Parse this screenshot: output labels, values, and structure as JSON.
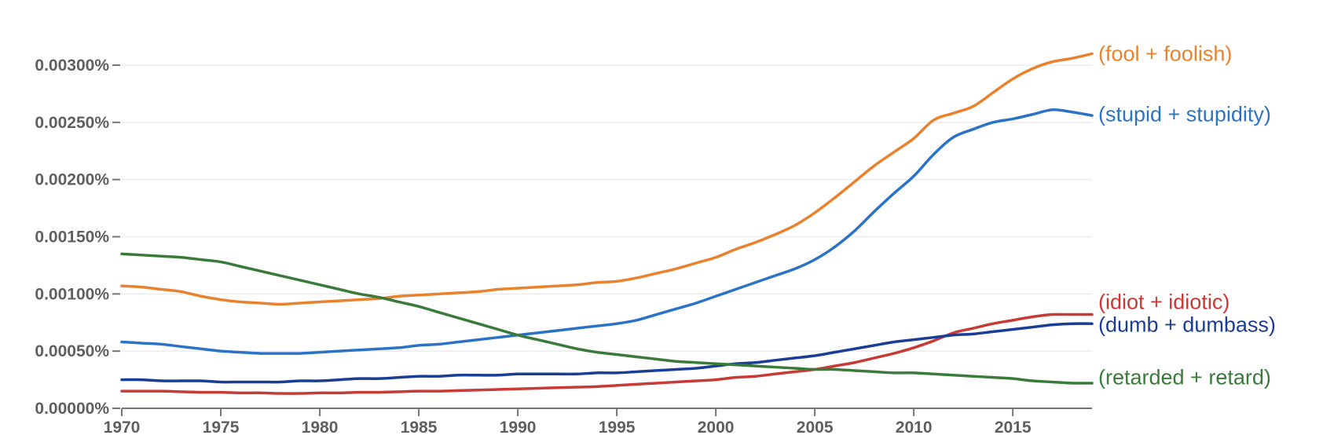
{
  "chart_data": {
    "type": "line",
    "title": "",
    "xlabel": "",
    "ylabel": "",
    "xlim": [
      1970,
      2019
    ],
    "ylim": [
      0,
      0.0033
    ],
    "grid": true,
    "legend": "labels at right end of each line",
    "y_ticks": [
      {
        "value": 0.0,
        "label": "0.00000%"
      },
      {
        "value": 0.0005,
        "label": "0.00050%"
      },
      {
        "value": 0.001,
        "label": "0.00100%"
      },
      {
        "value": 0.0015,
        "label": "0.00150%"
      },
      {
        "value": 0.002,
        "label": "0.00200%"
      },
      {
        "value": 0.0025,
        "label": "0.00250%"
      },
      {
        "value": 0.003,
        "label": "0.00300%"
      }
    ],
    "x_ticks": [
      {
        "value": 1970,
        "label": "1970"
      },
      {
        "value": 1975,
        "label": "1975"
      },
      {
        "value": 1980,
        "label": "1980"
      },
      {
        "value": 1985,
        "label": "1985"
      },
      {
        "value": 1990,
        "label": "1990"
      },
      {
        "value": 1995,
        "label": "1995"
      },
      {
        "value": 2000,
        "label": "2000"
      },
      {
        "value": 2005,
        "label": "2005"
      },
      {
        "value": 2010,
        "label": "2010"
      },
      {
        "value": 2015,
        "label": "2015"
      }
    ],
    "x": [
      1970,
      1971,
      1972,
      1973,
      1974,
      1975,
      1976,
      1977,
      1978,
      1979,
      1980,
      1981,
      1982,
      1983,
      1984,
      1985,
      1986,
      1987,
      1988,
      1989,
      1990,
      1991,
      1992,
      1993,
      1994,
      1995,
      1996,
      1997,
      1998,
      1999,
      2000,
      2001,
      2002,
      2003,
      2004,
      2005,
      2006,
      2007,
      2008,
      2009,
      2010,
      2011,
      2012,
      2013,
      2014,
      2015,
      2016,
      2017,
      2018,
      2019
    ],
    "series": [
      {
        "name": "(fool + foolish)",
        "color": "#e8822e",
        "label_value": 0.0031,
        "values": [
          0.00107,
          0.00106,
          0.00104,
          0.00102,
          0.00098,
          0.00095,
          0.00093,
          0.00092,
          0.00091,
          0.00092,
          0.00093,
          0.00094,
          0.00095,
          0.00096,
          0.00098,
          0.00099,
          0.001,
          0.00101,
          0.00102,
          0.00104,
          0.00105,
          0.00106,
          0.00107,
          0.00108,
          0.0011,
          0.00111,
          0.00114,
          0.00118,
          0.00122,
          0.00127,
          0.00132,
          0.00139,
          0.00145,
          0.00152,
          0.0016,
          0.00171,
          0.00184,
          0.00198,
          0.00212,
          0.00224,
          0.00236,
          0.00252,
          0.00258,
          0.00264,
          0.00276,
          0.00288,
          0.00297,
          0.00303,
          0.00306,
          0.0031
        ]
      },
      {
        "name": "(stupid + stupidity)",
        "color": "#2a73c6",
        "label_value": 0.00257,
        "values": [
          0.00058,
          0.00057,
          0.00056,
          0.00054,
          0.00052,
          0.0005,
          0.00049,
          0.00048,
          0.00048,
          0.00048,
          0.00049,
          0.0005,
          0.00051,
          0.00052,
          0.00053,
          0.00055,
          0.00056,
          0.00058,
          0.0006,
          0.00062,
          0.00064,
          0.00066,
          0.00068,
          0.0007,
          0.00072,
          0.00074,
          0.00077,
          0.00082,
          0.00087,
          0.00092,
          0.00098,
          0.00104,
          0.0011,
          0.00116,
          0.00122,
          0.0013,
          0.00141,
          0.00155,
          0.00172,
          0.00188,
          0.00203,
          0.00222,
          0.00237,
          0.00244,
          0.0025,
          0.00253,
          0.00257,
          0.00261,
          0.00259,
          0.00256
        ]
      },
      {
        "name": "(idiot + idiotic)",
        "color": "#c73a35",
        "label_value": 0.00093,
        "values": [
          0.00015,
          0.00015,
          0.00015,
          0.000145,
          0.00014,
          0.00014,
          0.000135,
          0.000135,
          0.00013,
          0.00013,
          0.000135,
          0.000135,
          0.00014,
          0.00014,
          0.000145,
          0.00015,
          0.00015,
          0.000155,
          0.00016,
          0.000165,
          0.00017,
          0.000175,
          0.00018,
          0.000185,
          0.00019,
          0.0002,
          0.00021,
          0.00022,
          0.00023,
          0.00024,
          0.00025,
          0.00027,
          0.00028,
          0.0003,
          0.00032,
          0.00034,
          0.00037,
          0.0004,
          0.00044,
          0.00048,
          0.00053,
          0.00059,
          0.00066,
          0.0007,
          0.00074,
          0.00077,
          0.0008,
          0.00082,
          0.00082,
          0.00082
        ]
      },
      {
        "name": "(dumb + dumbass)",
        "color": "#1a3e96",
        "label_value": 0.00073,
        "values": [
          0.00025,
          0.00025,
          0.00024,
          0.00024,
          0.00024,
          0.00023,
          0.00023,
          0.00023,
          0.00023,
          0.00024,
          0.00024,
          0.00025,
          0.00026,
          0.00026,
          0.00027,
          0.00028,
          0.00028,
          0.00029,
          0.00029,
          0.00029,
          0.0003,
          0.0003,
          0.0003,
          0.0003,
          0.00031,
          0.00031,
          0.00032,
          0.00033,
          0.00034,
          0.00035,
          0.00037,
          0.00039,
          0.0004,
          0.00042,
          0.00044,
          0.00046,
          0.00049,
          0.00052,
          0.00055,
          0.00058,
          0.0006,
          0.00062,
          0.00064,
          0.00065,
          0.00067,
          0.00069,
          0.00071,
          0.00073,
          0.00074,
          0.00074
        ]
      },
      {
        "name": "(retarded + retard)",
        "color": "#3a7a3a",
        "label_value": 0.00027,
        "values": [
          0.00135,
          0.00134,
          0.00133,
          0.00132,
          0.0013,
          0.00128,
          0.00124,
          0.0012,
          0.00116,
          0.00112,
          0.00108,
          0.00104,
          0.001,
          0.00097,
          0.00093,
          0.00089,
          0.00084,
          0.00079,
          0.00074,
          0.00069,
          0.00064,
          0.0006,
          0.00056,
          0.00052,
          0.00049,
          0.00047,
          0.00045,
          0.00043,
          0.00041,
          0.0004,
          0.00039,
          0.00038,
          0.00037,
          0.00036,
          0.00035,
          0.00034,
          0.00034,
          0.00033,
          0.00032,
          0.00031,
          0.00031,
          0.0003,
          0.00029,
          0.00028,
          0.00027,
          0.00026,
          0.00024,
          0.00023,
          0.00022,
          0.00022
        ]
      }
    ]
  }
}
